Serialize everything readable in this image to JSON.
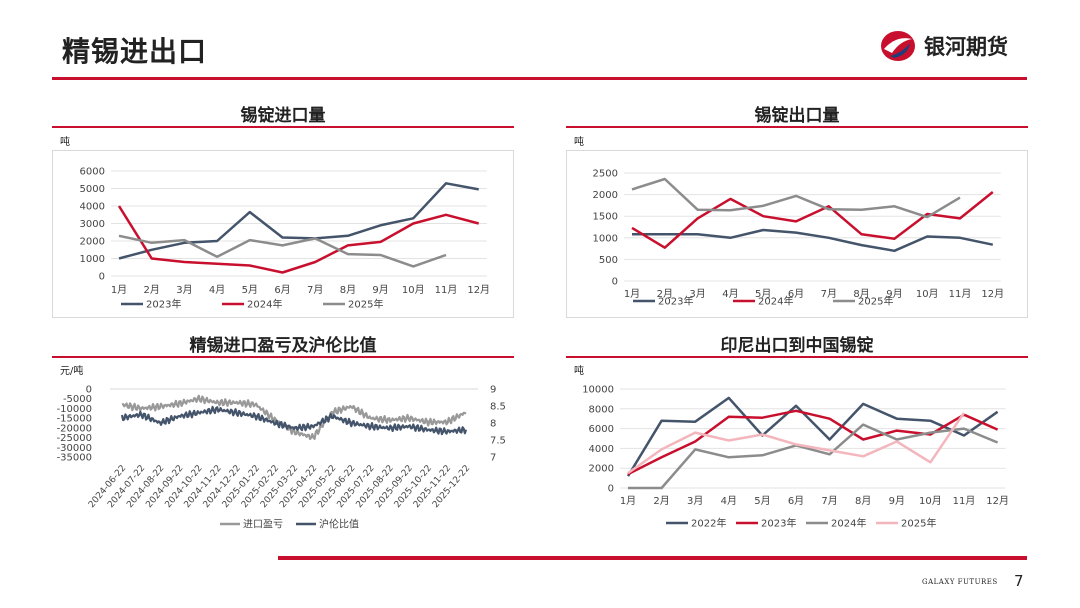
{
  "header": {
    "title": "精锡进出口",
    "brand_name": "银河期货"
  },
  "footer": {
    "brand_en": "GALAXY FUTURES",
    "page_number": "7"
  },
  "panels": {
    "p1": {
      "title": "锡锭进口量",
      "unit": "吨"
    },
    "p2": {
      "title": "锡锭出口量",
      "unit": "吨"
    },
    "p3": {
      "title": "精锡进口盈亏及沪伦比值",
      "unit": "元/吨"
    },
    "p4": {
      "title": "印尼出口到中国锡锭",
      "unit": "吨"
    }
  },
  "chart_data": [
    {
      "id": "p1",
      "type": "line",
      "title": "锡锭进口量",
      "ylabel": "吨",
      "categories": [
        "1月",
        "2月",
        "3月",
        "4月",
        "5月",
        "6月",
        "7月",
        "8月",
        "9月",
        "10月",
        "11月",
        "12月"
      ],
      "ylim": [
        0,
        6000
      ],
      "yticks": [
        0,
        1000,
        2000,
        3000,
        4000,
        5000,
        6000
      ],
      "series": [
        {
          "name": "2023年",
          "color": "#44546a",
          "values": [
            1000,
            1500,
            1900,
            2000,
            3650,
            2200,
            2150,
            2300,
            2900,
            3300,
            5300,
            4950
          ]
        },
        {
          "name": "2024年",
          "color": "#c8102e",
          "values": [
            4000,
            1000,
            800,
            700,
            600,
            200,
            800,
            1750,
            1950,
            3000,
            3500,
            3000
          ]
        },
        {
          "name": "2025年",
          "color": "#8c8c8c",
          "values": [
            2300,
            1900,
            2050,
            1100,
            2050,
            1750,
            2150,
            1250,
            1200,
            550,
            1200,
            null
          ]
        }
      ]
    },
    {
      "id": "p2",
      "type": "line",
      "title": "锡锭出口量",
      "ylabel": "吨",
      "categories": [
        "1月",
        "2月",
        "3月",
        "4月",
        "5月",
        "6月",
        "7月",
        "8月",
        "9月",
        "10月",
        "11月",
        "12月"
      ],
      "ylim": [
        0,
        2500
      ],
      "yticks": [
        0,
        500,
        1000,
        1500,
        2000,
        2500
      ],
      "series": [
        {
          "name": "2023年",
          "color": "#44546a",
          "values": [
            1080,
            1080,
            1080,
            1000,
            1180,
            1120,
            1000,
            830,
            700,
            1030,
            1000,
            840
          ]
        },
        {
          "name": "2024年",
          "color": "#c8102e",
          "values": [
            1230,
            770,
            1450,
            1900,
            1500,
            1380,
            1730,
            1080,
            980,
            1550,
            1450,
            2060
          ]
        },
        {
          "name": "2025年",
          "color": "#8c8c8c",
          "values": [
            2120,
            2360,
            1650,
            1640,
            1740,
            1970,
            1660,
            1650,
            1730,
            1480,
            1930,
            null
          ]
        }
      ]
    },
    {
      "id": "p3",
      "type": "line",
      "title": "精锡进口盈亏及沪伦比值",
      "ylabel": "元/吨",
      "categories": [
        "2024-06-22",
        "2024-07-22",
        "2024-08-22",
        "2024-09-22",
        "2024-10-22",
        "2024-11-22",
        "2024-12-22",
        "2025-01-22",
        "2025-02-22",
        "2025-03-22",
        "2025-04-22",
        "2025-05-22",
        "2025-06-22",
        "2025-07-22",
        "2025-08-22",
        "2025-09-22",
        "2025-10-22",
        "2025-11-22",
        "2025-12-22"
      ],
      "ylim_left": [
        -35000,
        0
      ],
      "yticks_left": [
        0,
        -5000,
        -10000,
        -15000,
        -20000,
        -25000,
        -30000,
        -35000
      ],
      "ylim_right": [
        7,
        9
      ],
      "yticks_right": [
        7,
        7.5,
        8,
        8.5,
        9
      ],
      "series": [
        {
          "name": "进口盈亏",
          "color": "#999999",
          "axis": "left",
          "values": [
            -8000,
            -10000,
            -9000,
            -7500,
            -5000,
            -7000,
            -7000,
            -8000,
            -16000,
            -22000,
            -25000,
            -12000,
            -9000,
            -15000,
            -16000,
            -15000,
            -17000,
            -17000,
            -12000
          ]
        },
        {
          "name": "沪伦比值",
          "color": "#44546a",
          "axis": "right",
          "values": [
            8.15,
            8.25,
            8.0,
            8.2,
            8.3,
            8.4,
            8.3,
            8.2,
            8.0,
            7.85,
            7.9,
            8.2,
            8.0,
            7.9,
            7.85,
            7.9,
            7.8,
            7.75,
            7.8
          ]
        }
      ]
    },
    {
      "id": "p4",
      "type": "line",
      "title": "印尼出口到中国锡锭",
      "ylabel": "吨",
      "categories": [
        "1月",
        "2月",
        "3月",
        "4月",
        "5月",
        "6月",
        "7月",
        "8月",
        "9月",
        "10月",
        "11月",
        "12月"
      ],
      "ylim": [
        0,
        10000
      ],
      "yticks": [
        0,
        2000,
        4000,
        6000,
        8000,
        10000
      ],
      "series": [
        {
          "name": "2022年",
          "color": "#44546a",
          "values": [
            1200,
            6800,
            6700,
            9100,
            5300,
            8300,
            4900,
            8500,
            7000,
            6800,
            5300,
            7700
          ]
        },
        {
          "name": "2023年",
          "color": "#c8102e",
          "values": [
            1400,
            3100,
            4700,
            7200,
            7100,
            7800,
            7000,
            4900,
            5800,
            5400,
            7400,
            5900
          ]
        },
        {
          "name": "2024年",
          "color": "#8c8c8c",
          "values": [
            0,
            0,
            3900,
            3100,
            3300,
            4300,
            3400,
            6400,
            4900,
            5600,
            6000,
            4600
          ]
        },
        {
          "name": "2025年",
          "color": "#f4b6bd",
          "values": [
            1500,
            3900,
            5600,
            4800,
            5400,
            4400,
            3800,
            3200,
            4700,
            2600,
            7600,
            null
          ]
        }
      ]
    }
  ]
}
